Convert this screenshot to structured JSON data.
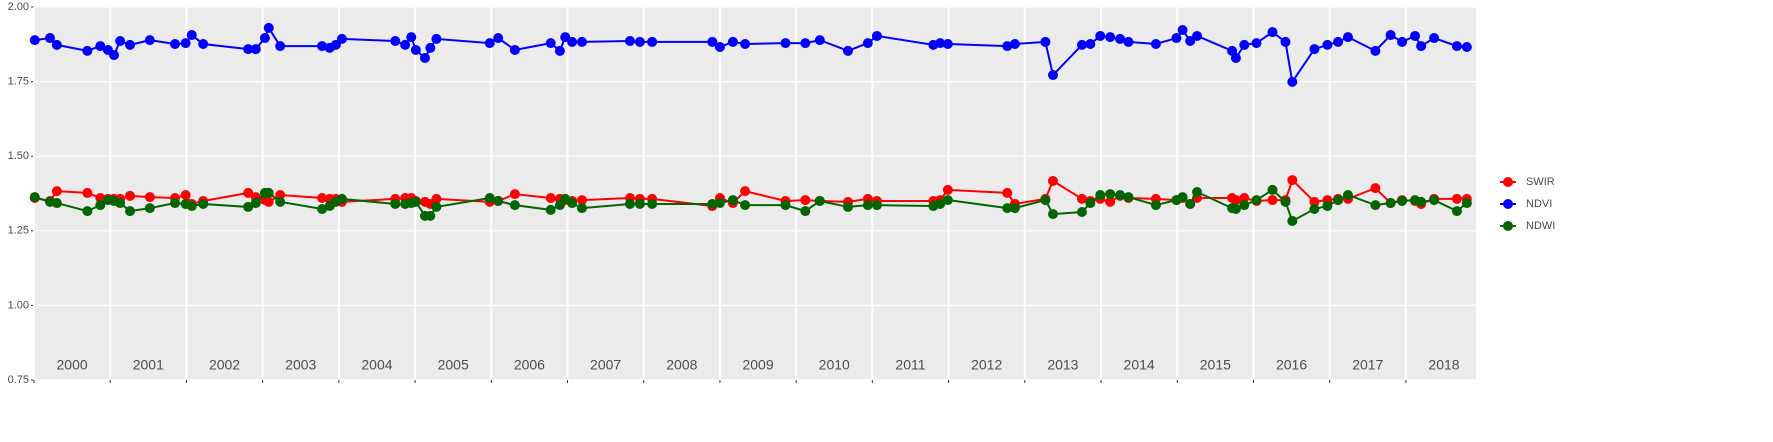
{
  "chart_data": {
    "type": "line",
    "x": [
      2000.01,
      2000.21,
      2000.3,
      2000.7,
      2000.87,
      2000.97,
      2001.05,
      2001.13,
      2001.26,
      2001.52,
      2001.85,
      2001.99,
      2002.07,
      2002.22,
      2002.81,
      2002.91,
      2003.03,
      2003.08,
      2003.23,
      2003.78,
      2003.88,
      2003.96,
      2004.04,
      2004.74,
      2004.87,
      2004.95,
      2005.01,
      2005.13,
      2005.2,
      2005.28,
      2005.98,
      2006.09,
      2006.31,
      2006.78,
      2006.9,
      2006.97,
      2007.06,
      2007.19,
      2007.82,
      2007.95,
      2008.11,
      2008.9,
      2009.0,
      2009.17,
      2009.33,
      2009.86,
      2010.12,
      2010.31,
      2010.68,
      2010.94,
      2011.06,
      2011.8,
      2011.89,
      2011.99,
      2012.77,
      2012.87,
      2013.27,
      2013.37,
      2013.75,
      2013.86,
      2013.99,
      2014.12,
      2014.25,
      2014.36,
      2014.72,
      2014.99,
      2015.07,
      2015.17,
      2015.26,
      2015.72,
      2015.77,
      2015.88,
      2016.04,
      2016.25,
      2016.42,
      2016.51,
      2016.8,
      2016.97,
      2017.11,
      2017.24,
      2017.6,
      2017.8,
      2017.95,
      2018.12,
      2018.2,
      2018.37,
      2018.67,
      2018.8
    ],
    "series": [
      {
        "name": "SWIR",
        "color": "#ff0000",
        "values": [
          1.36,
          1.35,
          1.383,
          1.377,
          1.36,
          1.357,
          1.357,
          1.357,
          1.367,
          1.363,
          1.36,
          1.37,
          1.34,
          1.35,
          1.377,
          1.363,
          1.353,
          1.347,
          1.37,
          1.36,
          1.357,
          1.357,
          1.347,
          1.357,
          1.36,
          1.36,
          1.35,
          1.347,
          1.34,
          1.357,
          1.347,
          1.35,
          1.373,
          1.36,
          1.357,
          1.353,
          1.35,
          1.353,
          1.36,
          1.357,
          1.357,
          1.333,
          1.36,
          1.343,
          1.383,
          1.35,
          1.353,
          1.35,
          1.347,
          1.357,
          1.35,
          1.35,
          1.353,
          1.387,
          1.377,
          1.34,
          1.357,
          1.417,
          1.357,
          1.35,
          1.357,
          1.347,
          1.367,
          1.36,
          1.357,
          1.353,
          1.36,
          1.34,
          1.36,
          1.36,
          1.353,
          1.36,
          1.35,
          1.353,
          1.353,
          1.42,
          1.347,
          1.353,
          1.357,
          1.357,
          1.393,
          1.343,
          1.353,
          1.35,
          1.34,
          1.357,
          1.357,
          1.357
        ]
      },
      {
        "name": "NDVI",
        "color": "#0000ff",
        "values": [
          1.889,
          1.896,
          1.873,
          1.853,
          1.869,
          1.856,
          1.839,
          1.886,
          1.873,
          1.889,
          1.876,
          1.879,
          1.906,
          1.876,
          1.859,
          1.859,
          1.896,
          1.93,
          1.869,
          1.869,
          1.863,
          1.873,
          1.893,
          1.886,
          1.873,
          1.899,
          1.856,
          1.829,
          1.863,
          1.893,
          1.879,
          1.896,
          1.856,
          1.879,
          1.853,
          1.899,
          1.883,
          1.883,
          1.886,
          1.883,
          1.883,
          1.883,
          1.866,
          1.883,
          1.876,
          1.879,
          1.879,
          1.889,
          1.853,
          1.879,
          1.903,
          1.873,
          1.879,
          1.876,
          1.869,
          1.876,
          1.883,
          1.772,
          1.873,
          1.876,
          1.903,
          1.899,
          1.893,
          1.883,
          1.876,
          1.896,
          1.923,
          1.886,
          1.903,
          1.853,
          1.829,
          1.873,
          1.879,
          1.916,
          1.883,
          1.749,
          1.859,
          1.873,
          1.883,
          1.899,
          1.853,
          1.906,
          1.883,
          1.903,
          1.869,
          1.896,
          1.869,
          1.866
        ]
      },
      {
        "name": "NDWI",
        "color": "#006400",
        "values": [
          1.363,
          1.347,
          1.343,
          1.316,
          1.336,
          1.353,
          1.35,
          1.343,
          1.316,
          1.326,
          1.343,
          1.34,
          1.333,
          1.34,
          1.33,
          1.343,
          1.377,
          1.377,
          1.347,
          1.323,
          1.333,
          1.347,
          1.357,
          1.34,
          1.34,
          1.343,
          1.347,
          1.3,
          1.3,
          1.33,
          1.36,
          1.35,
          1.336,
          1.32,
          1.336,
          1.357,
          1.343,
          1.326,
          1.34,
          1.34,
          1.34,
          1.34,
          1.343,
          1.353,
          1.336,
          1.336,
          1.316,
          1.35,
          1.33,
          1.336,
          1.336,
          1.333,
          1.34,
          1.353,
          1.326,
          1.326,
          1.353,
          1.306,
          1.313,
          1.343,
          1.37,
          1.373,
          1.37,
          1.363,
          1.336,
          1.353,
          1.363,
          1.34,
          1.38,
          1.326,
          1.323,
          1.336,
          1.353,
          1.387,
          1.347,
          1.283,
          1.323,
          1.333,
          1.353,
          1.37,
          1.336,
          1.343,
          1.35,
          1.353,
          1.347,
          1.353,
          1.316,
          1.343
        ]
      }
    ],
    "xlim": [
      2000,
      2018.92
    ],
    "xticks": [
      2000,
      2001,
      2002,
      2003,
      2004,
      2005,
      2006,
      2007,
      2008,
      2009,
      2010,
      2011,
      2012,
      2013,
      2014,
      2015,
      2016,
      2017,
      2018
    ],
    "ylim": [
      0.75,
      2.0
    ],
    "yticks": [
      {
        "value": 0.75,
        "label": "0.75"
      },
      {
        "value": 1,
        "label": "1.00"
      },
      1.25,
      {
        "value": 1.5,
        "label": "1.50"
      },
      1.75,
      {
        "value": 2,
        "label": "2.00"
      }
    ],
    "grid": true
  }
}
